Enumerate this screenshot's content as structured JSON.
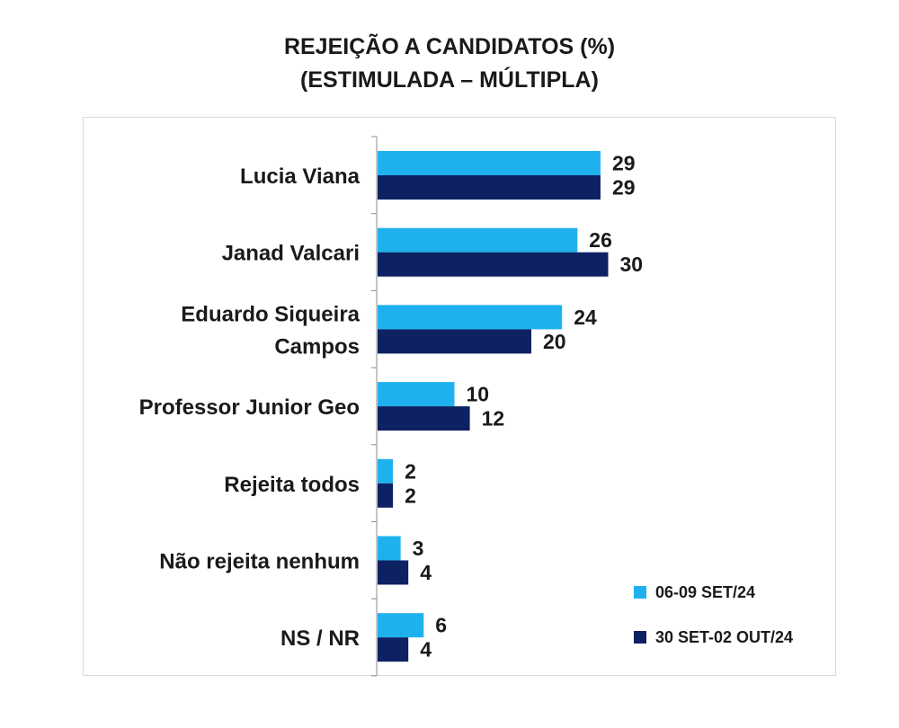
{
  "chart_data": {
    "type": "bar",
    "orientation": "horizontal",
    "title": [
      "REJEIÇÃO A CANDIDATOS (%)",
      "(ESTIMULADA – MÚLTIPLA)"
    ],
    "categories": [
      [
        "Lucia Viana"
      ],
      [
        "Janad Valcari"
      ],
      [
        "Eduardo Siqueira",
        "Campos"
      ],
      [
        "Professor Junior Geo"
      ],
      [
        "Rejeita todos"
      ],
      [
        "Não rejeita nenhum"
      ],
      [
        "NS / NR"
      ]
    ],
    "series": [
      {
        "name": "06-09 SET/24",
        "color": "#1eb1ee",
        "values": [
          29,
          26,
          24,
          10,
          2,
          3,
          6
        ]
      },
      {
        "name": "30 SET-02 OUT/24",
        "color": "#0d2163",
        "values": [
          29,
          30,
          20,
          12,
          2,
          4,
          4
        ]
      }
    ],
    "legend_position": "bottom-right",
    "grid": false,
    "xlim": [
      0,
      100
    ]
  }
}
